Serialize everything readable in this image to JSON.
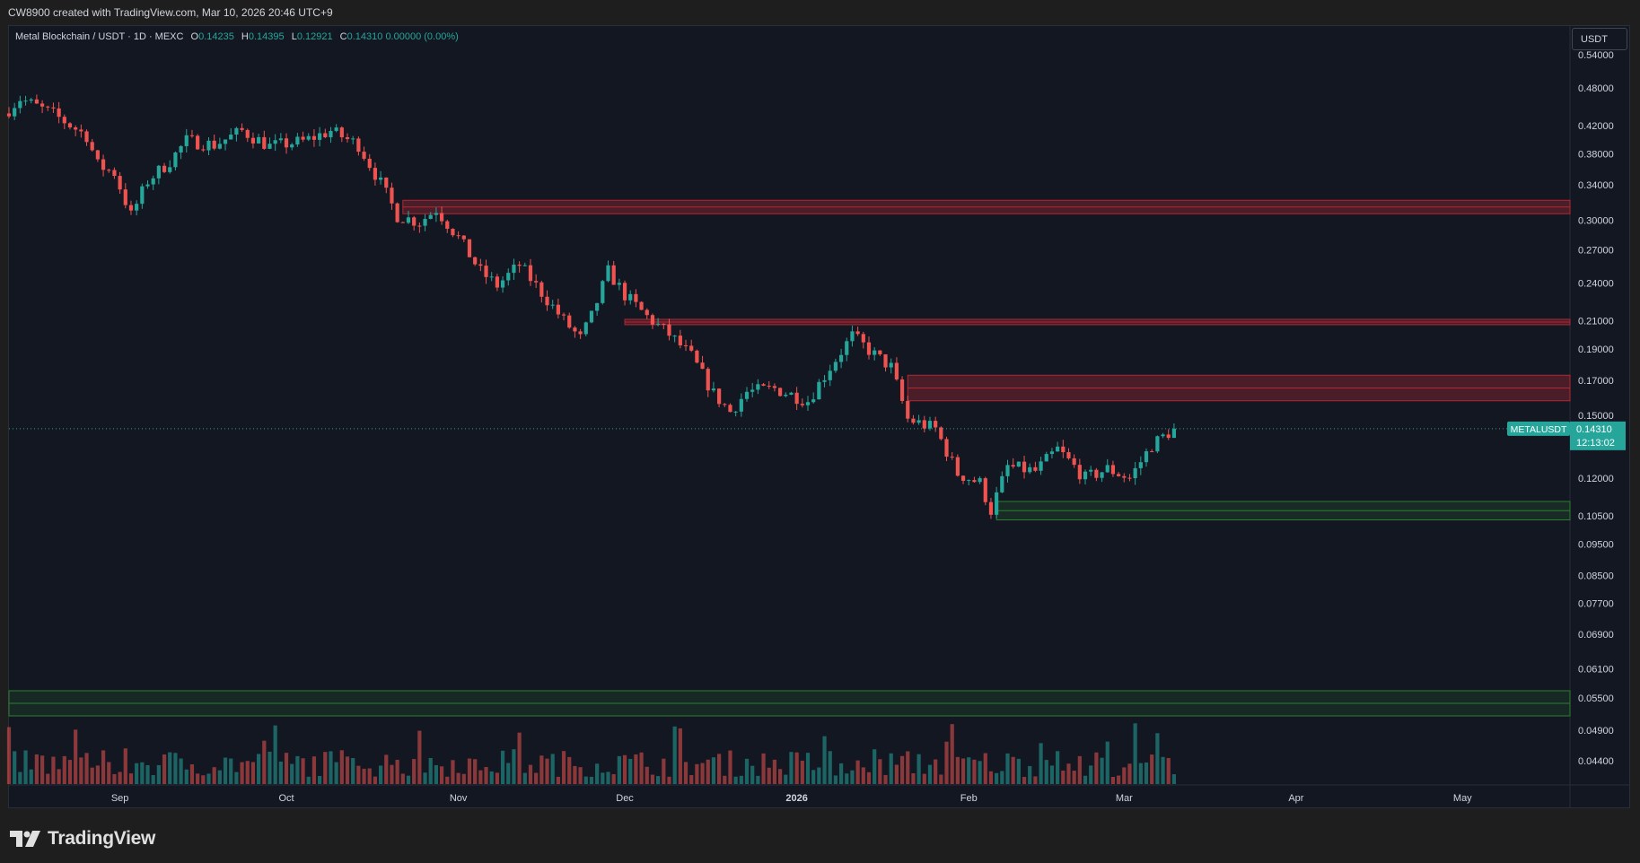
{
  "header": {
    "credit": "CW8900 created with TradingView.com, Mar 10, 2026 20:46 UTC+9"
  },
  "legend": {
    "symbol": "Metal Blockchain / USDT · 1D · MEXC",
    "open_label": "O",
    "open": "0.14235",
    "high_label": "H",
    "high": "0.14395",
    "low_label": "L",
    "low": "0.12921",
    "close_label": "C",
    "close": "0.14310",
    "change": "0.00000 (0.00%)"
  },
  "currency_button": "USDT",
  "price_tag": {
    "symbol": "METALUSDT",
    "price": "0.14310",
    "countdown": "12:13:02"
  },
  "brand": "TradingView",
  "colors": {
    "background": "#131722",
    "up": "#26a69a",
    "down": "#ef5350",
    "resistance_zone": "#b22833",
    "support_zone": "#2e7d32",
    "price_tag": "#26a69a"
  },
  "chart_data": {
    "type": "candlestick",
    "scale": "log",
    "grid": false,
    "y_ticks": [
      "0.54000",
      "0.48000",
      "0.42000",
      "0.38000",
      "0.34000",
      "0.30000",
      "0.27000",
      "0.24000",
      "0.21000",
      "0.19000",
      "0.17000",
      "0.15000",
      "0.12000",
      "0.10500",
      "0.09500",
      "0.08500",
      "0.07700",
      "0.06900",
      "0.06100",
      "0.05500",
      "0.04900",
      "0.04400"
    ],
    "x_ticks": [
      "Sep",
      "Oct",
      "Nov",
      "Dec",
      "2026",
      "Feb",
      "Mar",
      "Apr",
      "May"
    ],
    "x_range": [
      "2025-08-12",
      "2026-05-27"
    ],
    "ohlc_keypoints": [
      [
        "2025-08-12",
        0.445
      ],
      [
        "2025-08-14",
        0.462
      ],
      [
        "2025-08-20",
        0.437
      ],
      [
        "2025-08-26",
        0.405
      ],
      [
        "2025-08-28",
        0.365
      ],
      [
        "2025-08-31",
        0.355
      ],
      [
        "2025-09-03",
        0.305
      ],
      [
        "2025-09-06",
        0.345
      ],
      [
        "2025-09-10",
        0.37
      ],
      [
        "2025-09-13",
        0.398
      ],
      [
        "2025-09-18",
        0.392
      ],
      [
        "2025-09-23",
        0.412
      ],
      [
        "2025-09-28",
        0.39
      ],
      [
        "2025-10-04",
        0.397
      ],
      [
        "2025-10-09",
        0.412
      ],
      [
        "2025-10-14",
        0.392
      ],
      [
        "2025-10-18",
        0.342
      ],
      [
        "2025-10-21",
        0.305
      ],
      [
        "2025-10-25",
        0.298
      ],
      [
        "2025-10-28",
        0.312
      ],
      [
        "2025-11-01",
        0.282
      ],
      [
        "2025-11-05",
        0.25
      ],
      [
        "2025-11-08",
        0.238
      ],
      [
        "2025-11-12",
        0.256
      ],
      [
        "2025-11-16",
        0.232
      ],
      [
        "2025-11-20",
        0.21
      ],
      [
        "2025-11-23",
        0.197
      ],
      [
        "2025-11-25",
        0.213
      ],
      [
        "2025-11-28",
        0.25
      ],
      [
        "2025-12-01",
        0.23
      ],
      [
        "2025-12-05",
        0.213
      ],
      [
        "2025-12-09",
        0.2
      ],
      [
        "2025-12-13",
        0.185
      ],
      [
        "2025-12-17",
        0.162
      ],
      [
        "2025-12-20",
        0.152
      ],
      [
        "2025-12-23",
        0.163
      ],
      [
        "2025-12-28",
        0.165
      ],
      [
        "2026-01-03",
        0.158
      ],
      [
        "2026-01-07",
        0.178
      ],
      [
        "2026-01-11",
        0.199
      ],
      [
        "2026-01-15",
        0.186
      ],
      [
        "2026-01-18",
        0.178
      ],
      [
        "2026-01-21",
        0.148
      ],
      [
        "2026-01-26",
        0.143
      ],
      [
        "2026-01-30",
        0.122
      ],
      [
        "2026-02-03",
        0.118
      ],
      [
        "2026-02-05",
        0.107
      ],
      [
        "2026-02-08",
        0.125
      ],
      [
        "2026-02-13",
        0.123
      ],
      [
        "2026-02-17",
        0.133
      ],
      [
        "2026-02-22",
        0.12
      ],
      [
        "2026-02-26",
        0.124
      ],
      [
        "2026-03-02",
        0.12
      ],
      [
        "2026-03-06",
        0.135
      ],
      [
        "2026-03-10",
        0.1431
      ]
    ],
    "annotations": [
      {
        "type": "resistance_zone",
        "from": "2025-10-22",
        "to_edge": true,
        "price_low": 0.307,
        "price_high": 0.322
      },
      {
        "type": "resistance_zone",
        "from": "2025-12-01",
        "to_edge": true,
        "price_low": 0.207,
        "price_high": 0.211
      },
      {
        "type": "resistance_zone",
        "from": "2026-01-21",
        "to_edge": true,
        "price_low": 0.158,
        "price_high": 0.173
      },
      {
        "type": "support_zone",
        "from": "2026-02-06",
        "to_edge": true,
        "price_low": 0.1035,
        "price_high": 0.1105
      },
      {
        "type": "volume_zone",
        "from_edge": true,
        "to_edge": true,
        "band": "top-of-volume-pane"
      }
    ],
    "current_price": 0.1431
  }
}
